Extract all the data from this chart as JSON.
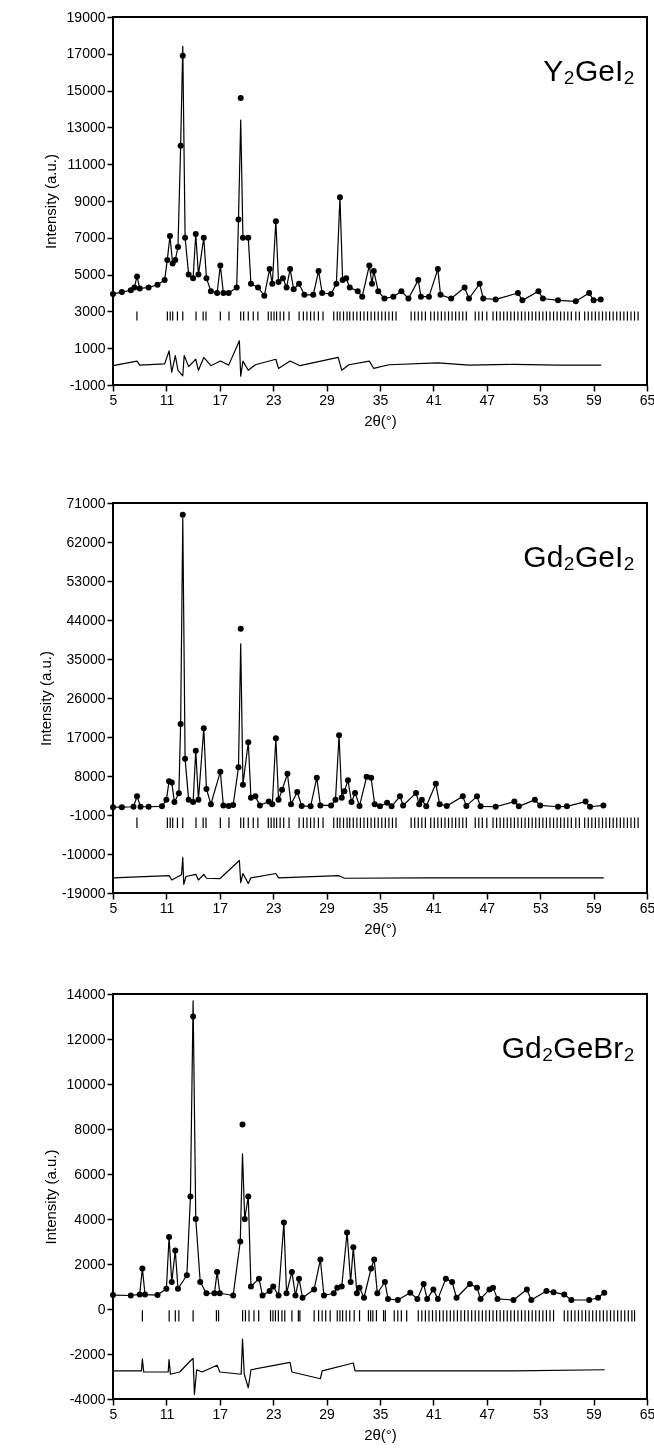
{
  "chart_data": [
    {
      "type": "scatter",
      "title": "Y₂GeI₂",
      "xlabel": "2θ(°)",
      "ylabel": "Intensity (a.u.)",
      "xlim": [
        5,
        65
      ],
      "xticks": [
        5,
        11,
        17,
        23,
        29,
        35,
        41,
        47,
        53,
        59,
        65
      ],
      "ylim": [
        -1000,
        19000
      ],
      "yticks": [
        -1000,
        1000,
        3000,
        5000,
        7000,
        9000,
        11000,
        13000,
        15000,
        17000,
        19000
      ],
      "x": [
        5,
        6,
        7,
        7.4,
        7.7,
        8.0,
        9,
        10,
        10.8,
        11.1,
        11.4,
        11.7,
        12.0,
        12.3,
        12.6,
        12.84,
        13.1,
        13.5,
        14.0,
        14.3,
        14.6,
        15.2,
        15.5,
        16.0,
        16.7,
        17.06,
        17.4,
        18.0,
        18.9,
        19.1,
        19.35,
        19.6,
        20.2,
        20.5,
        21.3,
        22.0,
        22.6,
        22.9,
        23.3,
        23.6,
        24.1,
        24.5,
        24.9,
        25.3,
        25.9,
        26.5,
        27.5,
        28.1,
        28.5,
        29.5,
        30.1,
        30.5,
        30.8,
        31.2,
        31.6,
        32.5,
        33.0,
        33.8,
        34.1,
        34.3,
        34.8,
        35.5,
        36.5,
        37.4,
        38.2,
        39.3,
        39.6,
        40.5,
        41.5,
        41.8,
        43.0,
        44.5,
        45.0,
        46.2,
        46.6,
        48.0,
        50.5,
        51.0,
        52.8,
        53.3,
        55.0,
        57.0,
        58.5,
        59.0,
        59.8
      ],
      "series": [
        {
          "marker": "circle",
          "color": "#000000",
          "values": [
            3950,
            4050,
            4150,
            4300,
            4900,
            4250,
            4300,
            4450,
            4700,
            5800,
            7100,
            5600,
            5800,
            6500,
            12000,
            16900,
            7000,
            5000,
            4800,
            7200,
            5000,
            7000,
            4800,
            4100,
            4000,
            5500,
            4000,
            4000,
            4300,
            8000,
            14600,
            7000,
            7000,
            4500,
            4300,
            3850,
            5300,
            4500,
            7900,
            4600,
            4800,
            4300,
            5300,
            4200,
            4500,
            3900,
            3900,
            5200,
            4000,
            3950,
            4500,
            9200,
            4700,
            4800,
            4300,
            4100,
            3800,
            5500,
            4500,
            5200,
            4100,
            3700,
            3800,
            4100,
            3700,
            4700,
            3800,
            3800,
            5300,
            3900,
            3700,
            4300,
            3700,
            4500,
            3700,
            3650,
            4000,
            3600,
            4100,
            3700,
            3600,
            3550,
            4000,
            3600,
            3650
          ]
        },
        {
          "type": "line",
          "color": "#000000",
          "values": [
            3950,
            4050,
            4150,
            4300,
            4900,
            4250,
            4300,
            4450,
            4700,
            5800,
            7100,
            5600,
            5800,
            6500,
            12000,
            17400,
            7000,
            5000,
            4800,
            7200,
            5000,
            7000,
            4800,
            4100,
            4000,
            5500,
            4000,
            4000,
            4300,
            8000,
            13400,
            7000,
            7000,
            4500,
            4300,
            3850,
            5300,
            4500,
            7900,
            4600,
            4800,
            4300,
            5300,
            4200,
            4500,
            3900,
            3900,
            5200,
            4000,
            3950,
            4500,
            9200,
            4700,
            4800,
            4300,
            4100,
            3800,
            5500,
            4500,
            5200,
            4100,
            3700,
            3800,
            4100,
            3700,
            4700,
            3800,
            3800,
            5300,
            3900,
            3700,
            4300,
            3700,
            4500,
            3700,
            3650,
            4000,
            3600,
            4100,
            3700,
            3600,
            3550,
            4000,
            3600,
            3650
          ]
        },
        {
          "type": "bar",
          "color": "#000000",
          "x": [
            7.69,
            11.11,
            11.43,
            11.71,
            12.24,
            12.84,
            14.33,
            15.13,
            15.45,
            17.06,
            18.03,
            19.35,
            19.68,
            20.2,
            20.76,
            21.28,
            22.45,
            22.77,
            23.09,
            23.38,
            23.78,
            24.18,
            24.78,
            25.91,
            26.39,
            26.79,
            27.2,
            27.6,
            28.08,
            28.6,
            29.8,
            30.2,
            30.5,
            30.9,
            31.3,
            31.6,
            32.0,
            32.4,
            32.8,
            33.2,
            33.6,
            34.0,
            34.4,
            34.8,
            35.2,
            35.6,
            36.0,
            36.4,
            36.8,
            38.5,
            38.9,
            39.3,
            39.7,
            40.1,
            40.7,
            41.1,
            41.5,
            41.9,
            42.3,
            42.7,
            43.1,
            43.5,
            43.9,
            44.3,
            44.7,
            45.7,
            46.1,
            46.5,
            47.0,
            47.7,
            48.1,
            48.5,
            48.9,
            49.3,
            49.7,
            50.1,
            50.5,
            50.9,
            51.3,
            51.7,
            52.1,
            52.5,
            52.9,
            53.3,
            53.7,
            54.1,
            54.5,
            54.9,
            55.3,
            55.7,
            56.1,
            56.5,
            57.0,
            57.4,
            58.0,
            58.4,
            58.8,
            59.2,
            59.6,
            60.0,
            60.4,
            60.8,
            61.2,
            61.6,
            62.0,
            62.4,
            62.8,
            63.2,
            63.6,
            64.0
          ],
          "base": [
            2500,
            2500,
            2500,
            2500,
            2500,
            2500,
            2500,
            2500,
            2500,
            2500,
            2500,
            2500,
            2500,
            2500,
            2500,
            2500,
            2500,
            2500,
            2500,
            2500,
            2500,
            2500,
            2500,
            2500,
            2500,
            2500,
            2500,
            2500,
            2500,
            2500,
            2500,
            2500,
            2500,
            2500,
            2500,
            2500,
            2500,
            2500,
            2500,
            2500,
            2500,
            2500,
            2500,
            2500,
            2500,
            2500,
            2500,
            2500,
            2500,
            2500,
            2500,
            2500,
            2500,
            2500,
            2500,
            2500,
            2500,
            2500,
            2500,
            2500,
            2500,
            2500,
            2500,
            2500,
            2500,
            2500,
            2500,
            2500,
            2500,
            2500,
            2500,
            2500,
            2500,
            2500,
            2500,
            2500,
            2500,
            2500,
            2500,
            2500,
            2500,
            2500,
            2500,
            2500,
            2500,
            2500,
            2500,
            2500,
            2500,
            2500,
            2500,
            2500,
            2500,
            2500,
            2500,
            2500,
            2500,
            2500,
            2500,
            2500,
            2500,
            2500,
            2500,
            2500,
            2500,
            2500,
            2500,
            2500,
            2500,
            2500
          ],
          "values": [
            500,
            500,
            500,
            500,
            500,
            500,
            500,
            500,
            500,
            500,
            500,
            500,
            500,
            500,
            500,
            500,
            500,
            500,
            500,
            500,
            500,
            500,
            500,
            500,
            500,
            500,
            500,
            500,
            500,
            500,
            500,
            500,
            500,
            500,
            500,
            500,
            500,
            500,
            500,
            500,
            500,
            500,
            500,
            500,
            500,
            500,
            500,
            500,
            500,
            500,
            500,
            500,
            500,
            500,
            500,
            500,
            500,
            500,
            500,
            500,
            500,
            500,
            500,
            500,
            500,
            500,
            500,
            500,
            500,
            500,
            500,
            500,
            500,
            500,
            500,
            500,
            500,
            500,
            500,
            500,
            500,
            500,
            500,
            500,
            500,
            500,
            500,
            500,
            500,
            500,
            500,
            500,
            500,
            500,
            500,
            500,
            500,
            500,
            500,
            500,
            500,
            500,
            500,
            500,
            500,
            500,
            500,
            500,
            500,
            500
          ]
        },
        {
          "type": "line",
          "color": "#000000",
          "x": [
            5,
            7.7,
            8,
            10.8,
            11.3,
            11.6,
            12.0,
            12.3,
            12.84,
            13.0,
            13.5,
            14.3,
            14.6,
            15.2,
            16,
            17.06,
            18,
            19.2,
            19.35,
            19.6,
            20.2,
            21,
            23.3,
            23.6,
            24.9,
            26,
            30.3,
            30.7,
            31.5,
            33.8,
            34.3,
            36,
            41.5,
            45,
            50,
            55,
            59.8
          ],
          "values": [
            50,
            300,
            80,
            150,
            850,
            -300,
            600,
            -200,
            -500,
            600,
            0,
            400,
            -200,
            500,
            50,
            300,
            80,
            1400,
            -520,
            300,
            -200,
            100,
            400,
            -100,
            300,
            50,
            500,
            -200,
            100,
            300,
            -100,
            100,
            200,
            80,
            120,
            80,
            80
          ]
        }
      ]
    },
    {
      "type": "scatter",
      "title": "Gd₂GeI₂",
      "xlabel": "2θ(°)",
      "ylabel": "Intensity (a.u.)",
      "xlim": [
        5,
        65
      ],
      "xticks": [
        5,
        11,
        17,
        23,
        29,
        35,
        41,
        47,
        53,
        59,
        65
      ],
      "ylim": [
        -19000,
        71000
      ],
      "yticks": [
        -19000,
        -10000,
        -1000,
        8000,
        17000,
        26000,
        35000,
        44000,
        53000,
        62000,
        71000
      ],
      "x": [
        5,
        6,
        7.3,
        7.7,
        8.1,
        9,
        10.5,
        11.0,
        11.3,
        11.6,
        11.9,
        12.4,
        12.6,
        12.84,
        13.1,
        13.5,
        14.0,
        14.3,
        14.6,
        15.2,
        15.5,
        16.0,
        17.06,
        17.4,
        18.0,
        18.5,
        19.1,
        19.35,
        19.6,
        20.2,
        20.5,
        21.0,
        21.5,
        22.5,
        22.9,
        23.3,
        23.6,
        24.0,
        24.6,
        25.0,
        25.7,
        26.2,
        27.2,
        27.9,
        28.3,
        29.5,
        30.0,
        30.4,
        30.7,
        31.0,
        31.4,
        31.8,
        32.2,
        32.7,
        33.5,
        34.0,
        34.4,
        35.0,
        35.8,
        36.3,
        37.25,
        37.6,
        39.05,
        39.4,
        39.7,
        40.2,
        41.27,
        41.7,
        42.5,
        44.3,
        44.7,
        45.9,
        46.3,
        48.0,
        50.1,
        50.6,
        52.4,
        53.0,
        55.0,
        56.0,
        58.1,
        58.6,
        60.1
      ],
      "series": [
        {
          "marker": "circle",
          "color": "#000000",
          "values": [
            800,
            800,
            900,
            3300,
            900,
            900,
            1000,
            2500,
            6800,
            6500,
            2000,
            4000,
            20000,
            68300,
            12000,
            2500,
            2000,
            13800,
            2500,
            19000,
            5000,
            1500,
            9000,
            1200,
            1100,
            1300,
            10000,
            42000,
            6000,
            15800,
            3000,
            3300,
            1200,
            2100,
            1500,
            16700,
            2500,
            4800,
            8500,
            1500,
            4300,
            1100,
            1000,
            7600,
            1200,
            1200,
            2500,
            17400,
            3000,
            4500,
            7000,
            2000,
            4100,
            1100,
            7800,
            7600,
            1500,
            1000,
            1800,
            1000,
            3300,
            1200,
            4100,
            1500,
            2500,
            1000,
            6200,
            1500,
            1100,
            3300,
            1100,
            3300,
            1000,
            900,
            2100,
            1000,
            2500,
            1200,
            900,
            1000,
            2100,
            900,
            1200
          ]
        },
        {
          "type": "line",
          "color": "#000000",
          "values": [
            800,
            800,
            900,
            3300,
            900,
            900,
            1000,
            2500,
            6800,
            6500,
            2000,
            4000,
            20000,
            67500,
            12000,
            2500,
            2000,
            13800,
            2500,
            19000,
            5000,
            1500,
            9000,
            1200,
            1100,
            1300,
            10000,
            38500,
            6000,
            15800,
            3000,
            3300,
            1200,
            2100,
            1500,
            16700,
            2500,
            4800,
            8500,
            1500,
            4300,
            1100,
            1000,
            7600,
            1200,
            1200,
            2500,
            17400,
            3000,
            4500,
            7000,
            2000,
            4100,
            1100,
            7800,
            7600,
            1500,
            1000,
            1800,
            1000,
            3300,
            1200,
            4100,
            1500,
            2500,
            1000,
            6200,
            1500,
            1100,
            3300,
            1100,
            3300,
            1000,
            900,
            2100,
            1000,
            2500,
            1200,
            900,
            1000,
            2100,
            900,
            1200
          ]
        },
        {
          "type": "bar",
          "color": "#000000",
          "x": [
            7.69,
            11.11,
            11.43,
            11.71,
            12.24,
            12.84,
            14.33,
            15.13,
            15.45,
            17.06,
            18.03,
            19.35,
            19.68,
            20.2,
            20.76,
            21.28,
            22.45,
            22.77,
            23.09,
            23.38,
            23.78,
            24.18,
            24.78,
            25.91,
            26.39,
            26.79,
            27.2,
            27.6,
            28.08,
            28.6,
            29.8,
            30.2,
            30.5,
            30.9,
            31.3,
            31.6,
            32.0,
            32.4,
            32.8,
            33.2,
            33.6,
            34.0,
            34.4,
            34.8,
            35.2,
            35.6,
            36.0,
            36.4,
            36.8,
            38.5,
            38.9,
            39.3,
            39.7,
            40.1,
            40.7,
            41.1,
            41.5,
            41.9,
            42.3,
            42.7,
            43.1,
            43.5,
            43.9,
            44.3,
            44.7,
            45.7,
            46.1,
            46.5,
            47.0,
            47.7,
            48.1,
            48.5,
            48.9,
            49.3,
            49.7,
            50.1,
            50.5,
            50.9,
            51.3,
            51.7,
            52.1,
            52.5,
            52.9,
            53.3,
            53.7,
            54.1,
            54.5,
            54.9,
            55.3,
            55.7,
            56.1,
            56.5,
            57.0,
            57.4,
            58.0,
            58.4,
            58.8,
            59.2,
            59.6,
            60.0,
            60.4,
            60.8,
            61.2,
            61.6,
            62.0,
            62.4,
            62.8,
            63.2,
            63.6,
            64.0
          ],
          "base": [
            -4000,
            -4000,
            -4000,
            -4000,
            -4000,
            -4000,
            -4000,
            -4000,
            -4000,
            -4000,
            -4000,
            -4000,
            -4000,
            -4000,
            -4000,
            -4000,
            -4000,
            -4000,
            -4000,
            -4000,
            -4000,
            -4000,
            -4000,
            -4000,
            -4000,
            -4000,
            -4000,
            -4000,
            -4000,
            -4000,
            -4000,
            -4000,
            -4000,
            -4000,
            -4000,
            -4000,
            -4000,
            -4000,
            -4000,
            -4000,
            -4000,
            -4000,
            -4000,
            -4000,
            -4000,
            -4000,
            -4000,
            -4000,
            -4000,
            -4000,
            -4000,
            -4000,
            -4000,
            -4000,
            -4000,
            -4000,
            -4000,
            -4000,
            -4000,
            -4000,
            -4000,
            -4000,
            -4000,
            -4000,
            -4000,
            -4000,
            -4000,
            -4000,
            -4000,
            -4000,
            -4000,
            -4000,
            -4000,
            -4000,
            -4000,
            -4000,
            -4000,
            -4000,
            -4000,
            -4000,
            -4000,
            -4000,
            -4000,
            -4000,
            -4000,
            -4000,
            -4000,
            -4000,
            -4000,
            -4000,
            -4000,
            -4000,
            -4000,
            -4000,
            -4000,
            -4000,
            -4000,
            -4000,
            -4000,
            -4000,
            -4000,
            -4000,
            -4000,
            -4000,
            -4000,
            -4000,
            -4000,
            -4000,
            -4000,
            -4000
          ],
          "values": [
            2400,
            2400,
            2400,
            2400,
            2400,
            2400,
            2400,
            2400,
            2400,
            2400,
            2400,
            2400,
            2400,
            2400,
            2400,
            2400,
            2400,
            2400,
            2400,
            2400,
            2400,
            2400,
            2400,
            2400,
            2400,
            2400,
            2400,
            2400,
            2400,
            2400,
            2400,
            2400,
            2400,
            2400,
            2400,
            2400,
            2400,
            2400,
            2400,
            2400,
            2400,
            2400,
            2400,
            2400,
            2400,
            2400,
            2400,
            2400,
            2400,
            2400,
            2400,
            2400,
            2400,
            2400,
            2400,
            2400,
            2400,
            2400,
            2400,
            2400,
            2400,
            2400,
            2400,
            2400,
            2400,
            2400,
            2400,
            2400,
            2400,
            2400,
            2400,
            2400,
            2400,
            2400,
            2400,
            2400,
            2400,
            2400,
            2400,
            2400,
            2400,
            2400,
            2400,
            2400,
            2400,
            2400,
            2400,
            2400,
            2400,
            2400,
            2400,
            2400,
            2400,
            2400,
            2400,
            2400,
            2400,
            2400,
            2400,
            2400,
            2400,
            2400,
            2400,
            2400,
            2400,
            2400,
            2400,
            2400,
            2400,
            2400
          ]
        },
        {
          "type": "line",
          "color": "#000000",
          "x": [
            5,
            11.3,
            11.6,
            12.7,
            12.84,
            12.95,
            13.2,
            14.3,
            14.6,
            15.2,
            15.5,
            17,
            19.2,
            19.35,
            19.6,
            20.2,
            20.5,
            23.3,
            23.6,
            30.4,
            31,
            40,
            50,
            60.1
          ],
          "values": [
            -15500,
            -15000,
            -16000,
            -14800,
            -10800,
            -17000,
            -15200,
            -14700,
            -16000,
            -14700,
            -15600,
            -15700,
            -11500,
            -16600,
            -14500,
            -16800,
            -15500,
            -14500,
            -15500,
            -15000,
            -15600,
            -15500,
            -15500,
            -15500
          ]
        }
      ]
    },
    {
      "type": "scatter",
      "title": "Gd₂GeBr₂",
      "xlabel": "2θ(°)",
      "ylabel": "Intensity (a.u.)",
      "xlim": [
        5,
        65
      ],
      "xticks": [
        5,
        11,
        17,
        23,
        29,
        35,
        41,
        47,
        53,
        59,
        65
      ],
      "ylim": [
        -4000,
        14000
      ],
      "yticks": [
        -4000,
        -2000,
        0,
        2000,
        4000,
        6000,
        8000,
        10000,
        12000,
        14000
      ],
      "x": [
        5,
        7,
        8.0,
        8.3,
        8.6,
        10.0,
        11.0,
        11.3,
        11.6,
        12.0,
        12.3,
        13.3,
        13.7,
        14.0,
        14.3,
        14.8,
        15.5,
        16.4,
        16.7,
        17.0,
        18.5,
        19.3,
        19.55,
        19.8,
        20.2,
        20.5,
        21.4,
        21.8,
        22.6,
        23.0,
        23.6,
        24.2,
        24.5,
        25.1,
        25.5,
        25.9,
        26.3,
        27.6,
        28.3,
        28.7,
        29.8,
        30.2,
        30.7,
        31.3,
        31.7,
        32.0,
        32.4,
        32.7,
        33.2,
        34.0,
        34.35,
        34.7,
        35.55,
        35.9,
        37.0,
        38.4,
        39.2,
        39.9,
        40.3,
        41.0,
        41.5,
        42.4,
        43.1,
        43.6,
        45.1,
        45.9,
        46.3,
        47.3,
        47.7,
        48.2,
        50.0,
        51.5,
        52.0,
        53.7,
        54.5,
        55.7,
        56.5,
        58.5,
        59.5,
        60.2
      ],
      "series": [
        {
          "marker": "circle",
          "color": "#000000",
          "values": [
            620,
            600,
            650,
            1800,
            640,
            620,
            900,
            3200,
            1200,
            2600,
            900,
            1500,
            5000,
            13000,
            4000,
            1200,
            700,
            700,
            1650,
            700,
            600,
            3000,
            8200,
            4000,
            5000,
            1000,
            1350,
            600,
            800,
            1000,
            600,
            3840,
            700,
            1650,
            600,
            1350,
            500,
            870,
            2200,
            600,
            700,
            950,
            1000,
            3400,
            1200,
            2750,
            700,
            950,
            500,
            1800,
            2200,
            700,
            1200,
            450,
            400,
            720,
            450,
            1110,
            450,
            870,
            450,
            1350,
            1200,
            500,
            1110,
            950,
            450,
            870,
            950,
            450,
            400,
            870,
            400,
            800,
            750,
            640,
            400,
            400,
            500,
            720
          ]
        },
        {
          "type": "line",
          "color": "#000000",
          "values": [
            620,
            600,
            650,
            1800,
            640,
            620,
            900,
            3200,
            1200,
            2600,
            900,
            1500,
            5000,
            13700,
            4000,
            1200,
            700,
            700,
            1650,
            700,
            600,
            3000,
            6900,
            4000,
            5000,
            1000,
            1350,
            600,
            800,
            1000,
            600,
            3840,
            700,
            1650,
            600,
            1350,
            500,
            870,
            2200,
            600,
            700,
            950,
            1000,
            3400,
            1200,
            2750,
            700,
            950,
            500,
            1800,
            2200,
            700,
            1200,
            450,
            400,
            720,
            450,
            1110,
            450,
            870,
            450,
            1350,
            1200,
            500,
            1110,
            950,
            450,
            870,
            950,
            450,
            400,
            870,
            400,
            800,
            750,
            640,
            400,
            400,
            500,
            720
          ]
        },
        {
          "type": "bar",
          "color": "#000000",
          "x": [
            8.3,
            11.31,
            12.0,
            12.4,
            14.0,
            16.62,
            16.86,
            19.56,
            19.88,
            20.28,
            20.84,
            21.37,
            22.7,
            22.97,
            23.25,
            23.58,
            23.98,
            24.3,
            25.1,
            25.83,
            26.0,
            27.6,
            28.1,
            28.5,
            28.9,
            29.4,
            30.2,
            30.5,
            30.8,
            31.2,
            31.6,
            32.1,
            32.7,
            33.7,
            33.95,
            34.2,
            34.6,
            35.4,
            35.6,
            36.6,
            37.0,
            37.4,
            38.0,
            39.3,
            39.7,
            40.1,
            40.5,
            40.9,
            41.3,
            41.7,
            42.1,
            42.5,
            42.9,
            43.3,
            43.7,
            44.1,
            44.5,
            44.9,
            45.3,
            45.7,
            46.1,
            46.5,
            46.9,
            47.3,
            47.7,
            48.1,
            48.5,
            48.9,
            49.3,
            49.7,
            50.1,
            50.5,
            50.9,
            51.3,
            51.7,
            52.1,
            52.5,
            52.9,
            53.3,
            53.7,
            54.1,
            54.5,
            55.7,
            56.1,
            56.5,
            56.9,
            57.3,
            57.7,
            58.1,
            58.5,
            58.9,
            59.3,
            59.7,
            60.1,
            60.5,
            60.9,
            61.3,
            61.7,
            62.1,
            62.5,
            62.9,
            63.3,
            63.6
          ],
          "base": [
            -550,
            -550,
            -550,
            -550,
            -550,
            -550,
            -550,
            -550,
            -550,
            -550,
            -550,
            -550,
            -550,
            -550,
            -550,
            -550,
            -550,
            -550,
            -550,
            -550,
            -550,
            -550,
            -550,
            -550,
            -550,
            -550,
            -550,
            -550,
            -550,
            -550,
            -550,
            -550,
            -550,
            -550,
            -550,
            -550,
            -550,
            -550,
            -550,
            -550,
            -550,
            -550,
            -550,
            -550,
            -550,
            -550,
            -550,
            -550,
            -550,
            -550,
            -550,
            -550,
            -550,
            -550,
            -550,
            -550,
            -550,
            -550,
            -550,
            -550,
            -550,
            -550,
            -550,
            -550,
            -550,
            -550,
            -550,
            -550,
            -550,
            -550,
            -550,
            -550,
            -550,
            -550,
            -550,
            -550,
            -550,
            -550,
            -550,
            -550,
            -550,
            -550,
            -550,
            -550,
            -550,
            -550,
            -550,
            -550,
            -550,
            -550,
            -550,
            -550,
            -550,
            -550,
            -550,
            -550,
            -550,
            -550,
            -550,
            -550,
            -550,
            -550,
            -550
          ],
          "values": [
            500,
            500,
            500,
            500,
            500,
            500,
            500,
            500,
            500,
            500,
            500,
            500,
            500,
            500,
            500,
            500,
            500,
            500,
            500,
            500,
            500,
            500,
            500,
            500,
            500,
            500,
            500,
            500,
            500,
            500,
            500,
            500,
            500,
            500,
            500,
            500,
            500,
            500,
            500,
            500,
            500,
            500,
            500,
            500,
            500,
            500,
            500,
            500,
            500,
            500,
            500,
            500,
            500,
            500,
            500,
            500,
            500,
            500,
            500,
            500,
            500,
            500,
            500,
            500,
            500,
            500,
            500,
            500,
            500,
            500,
            500,
            500,
            500,
            500,
            500,
            500,
            500,
            500,
            500,
            500,
            500,
            500,
            500,
            500,
            500,
            500,
            500,
            500,
            500,
            500,
            500,
            500,
            500,
            500,
            500,
            500,
            500,
            500,
            500,
            500,
            500,
            500,
            500
          ]
        },
        {
          "type": "line",
          "color": "#000000",
          "x": [
            5,
            8.2,
            8.3,
            8.45,
            11.2,
            11.3,
            11.45,
            12.5,
            13.7,
            14.0,
            14.15,
            14.4,
            15,
            16.7,
            17,
            19.4,
            19.55,
            19.75,
            20.2,
            20.5,
            24.9,
            25.1,
            28.3,
            28.5,
            32.0,
            32.2,
            40,
            50,
            60.2
          ],
          "values": [
            -2750,
            -2750,
            -2220,
            -2800,
            -2800,
            -2250,
            -2900,
            -2800,
            -2300,
            -2200,
            -3800,
            -2700,
            -2800,
            -2500,
            -2800,
            -2900,
            -1340,
            -2900,
            -3500,
            -2700,
            -2370,
            -2800,
            -3100,
            -2750,
            -2400,
            -2750,
            -2750,
            -2750,
            -2700
          ]
        }
      ]
    }
  ]
}
